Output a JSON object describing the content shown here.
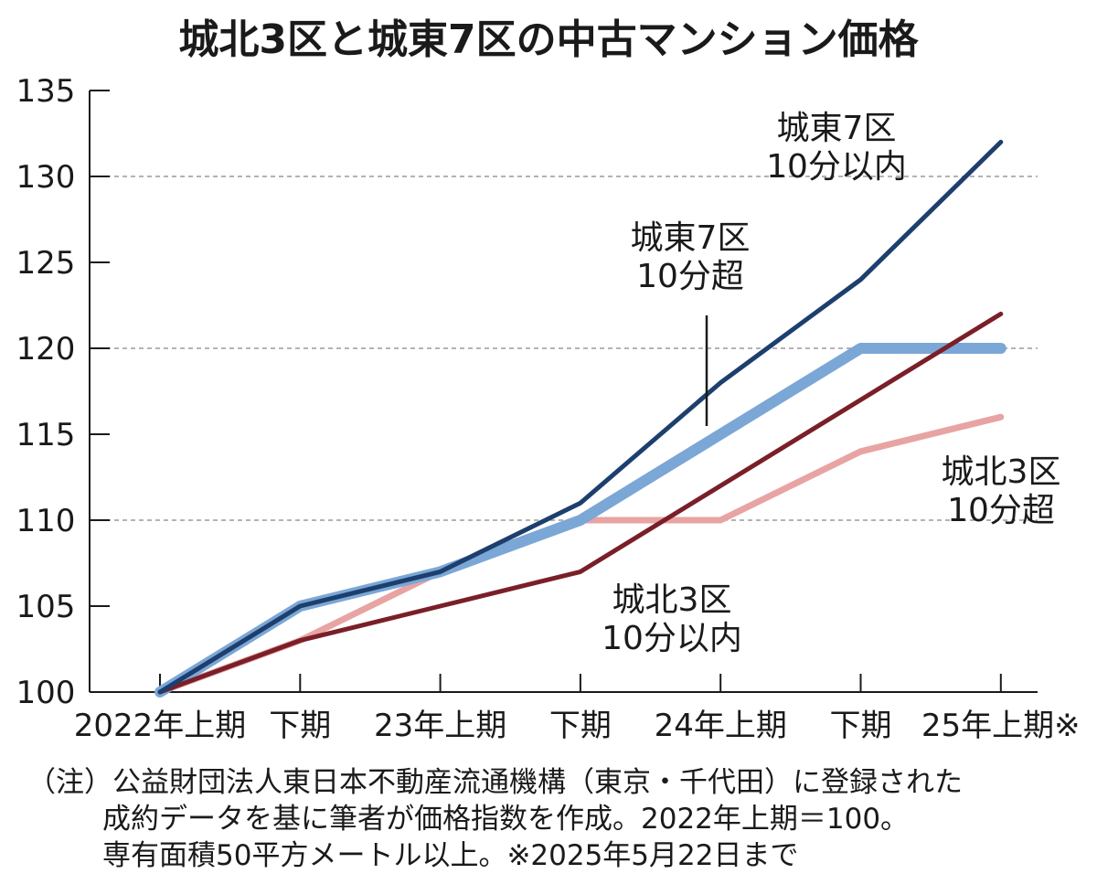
{
  "chart_data": {
    "type": "line",
    "title": "城北3区と城東7区の中古マンション価格",
    "categories": [
      "2022年上期",
      "下期",
      "23年上期",
      "下期",
      "24年上期",
      "下期",
      "25年上期※"
    ],
    "ylim": [
      100,
      135
    ],
    "yticks": [
      100,
      105,
      110,
      115,
      120,
      125,
      130,
      135
    ],
    "grid_values": [
      110,
      120,
      130
    ],
    "series": [
      {
        "name": "城北3区 10分超",
        "label_lines": [
          "城北3区",
          "10分超"
        ],
        "color": "#e8a3a3",
        "width": 7,
        "values": [
          100,
          103,
          107,
          110,
          110,
          114,
          116
        ]
      },
      {
        "name": "城東7区 10分超",
        "label_lines": [
          "城東7区",
          "10分超"
        ],
        "color": "#7ba7d6",
        "width": 12,
        "values": [
          100,
          105,
          107,
          110,
          115,
          120,
          120
        ]
      },
      {
        "name": "城北3区 10分以内",
        "label_lines": [
          "城北3区",
          "10分以内"
        ],
        "color": "#7a1f28",
        "width": 5,
        "values": [
          100,
          103,
          105,
          107,
          112,
          117,
          122
        ]
      },
      {
        "name": "城東7区 10分以内",
        "label_lines": [
          "城東7区",
          "10分以内"
        ],
        "color": "#1d3f6e",
        "width": 5,
        "values": [
          100,
          105,
          107,
          111,
          118,
          124,
          132
        ]
      }
    ],
    "note_lines": [
      "（注）公益財団法人東日本不動産流通機構（東京・千代田）に登録された",
      "成約データを基に筆者が価格指数を作成。2022年上期＝100。",
      "専有面積50平方メートル以上。※2025年5月22日まで"
    ]
  }
}
